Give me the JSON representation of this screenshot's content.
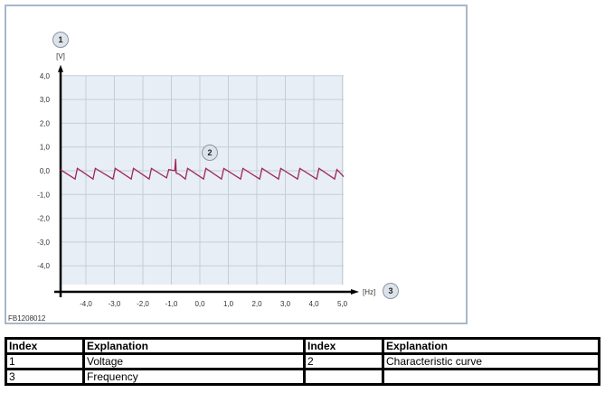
{
  "chart_data": {
    "type": "line",
    "xlabel": "[Hz]",
    "ylabel": "[V]",
    "xlim": [
      -4.9,
      5.05
    ],
    "ylim": [
      -4.9,
      4.0
    ],
    "xticks": [
      "-4,0",
      "-3,0",
      "-2,0",
      "-1,0",
      "0,0",
      "1,0",
      "2,0",
      "3,0",
      "4,0",
      "5,0"
    ],
    "xtick_values": [
      -4,
      -3,
      -2,
      -1,
      0,
      1,
      2,
      3,
      4,
      5
    ],
    "yticks": [
      "4,0",
      "3,0",
      "2,0",
      "1,0",
      "0,0",
      "-1,0",
      "-2,0",
      "-3,0",
      "-4,0"
    ],
    "ytick_values": [
      4,
      3,
      2,
      1,
      0,
      -1,
      -2,
      -3,
      -4
    ],
    "grid": true,
    "series": [
      {
        "color": "#a0265a",
        "points": [
          [
            -4.9,
            0.05
          ],
          [
            -4.38,
            -0.35
          ],
          [
            -4.3,
            0.1
          ],
          [
            -3.75,
            -0.35
          ],
          [
            -3.67,
            0.1
          ],
          [
            -3.05,
            -0.35
          ],
          [
            -2.97,
            0.1
          ],
          [
            -2.41,
            -0.35
          ],
          [
            -2.33,
            0.1
          ],
          [
            -1.78,
            -0.35
          ],
          [
            -1.7,
            0.1
          ],
          [
            -1.17,
            -0.3
          ],
          [
            -1.09,
            0.05
          ],
          [
            -0.88,
            0.0
          ],
          [
            -0.85,
            0.5
          ],
          [
            -0.83,
            -0.1
          ],
          [
            -0.72,
            -0.15
          ],
          [
            -0.51,
            -0.35
          ],
          [
            -0.43,
            0.1
          ],
          [
            0.13,
            -0.35
          ],
          [
            0.21,
            0.1
          ],
          [
            0.76,
            -0.35
          ],
          [
            0.84,
            0.1
          ],
          [
            1.43,
            -0.35
          ],
          [
            1.51,
            0.1
          ],
          [
            2.1,
            -0.35
          ],
          [
            2.18,
            0.1
          ],
          [
            2.76,
            -0.35
          ],
          [
            2.84,
            0.1
          ],
          [
            3.43,
            -0.35
          ],
          [
            3.51,
            0.1
          ],
          [
            4.1,
            -0.35
          ],
          [
            4.18,
            0.1
          ],
          [
            4.73,
            -0.35
          ],
          [
            4.81,
            0.05
          ],
          [
            5.05,
            -0.25
          ]
        ]
      }
    ],
    "callouts": [
      "1",
      "2",
      "3"
    ]
  },
  "figure_code": "FB1208012",
  "table": {
    "headers": [
      "Index",
      "Explanation",
      "Index",
      "Explanation"
    ],
    "rows": [
      [
        "1",
        "Voltage",
        "2",
        "Characteristic curve"
      ],
      [
        "3",
        "Frequency",
        "",
        ""
      ]
    ]
  }
}
